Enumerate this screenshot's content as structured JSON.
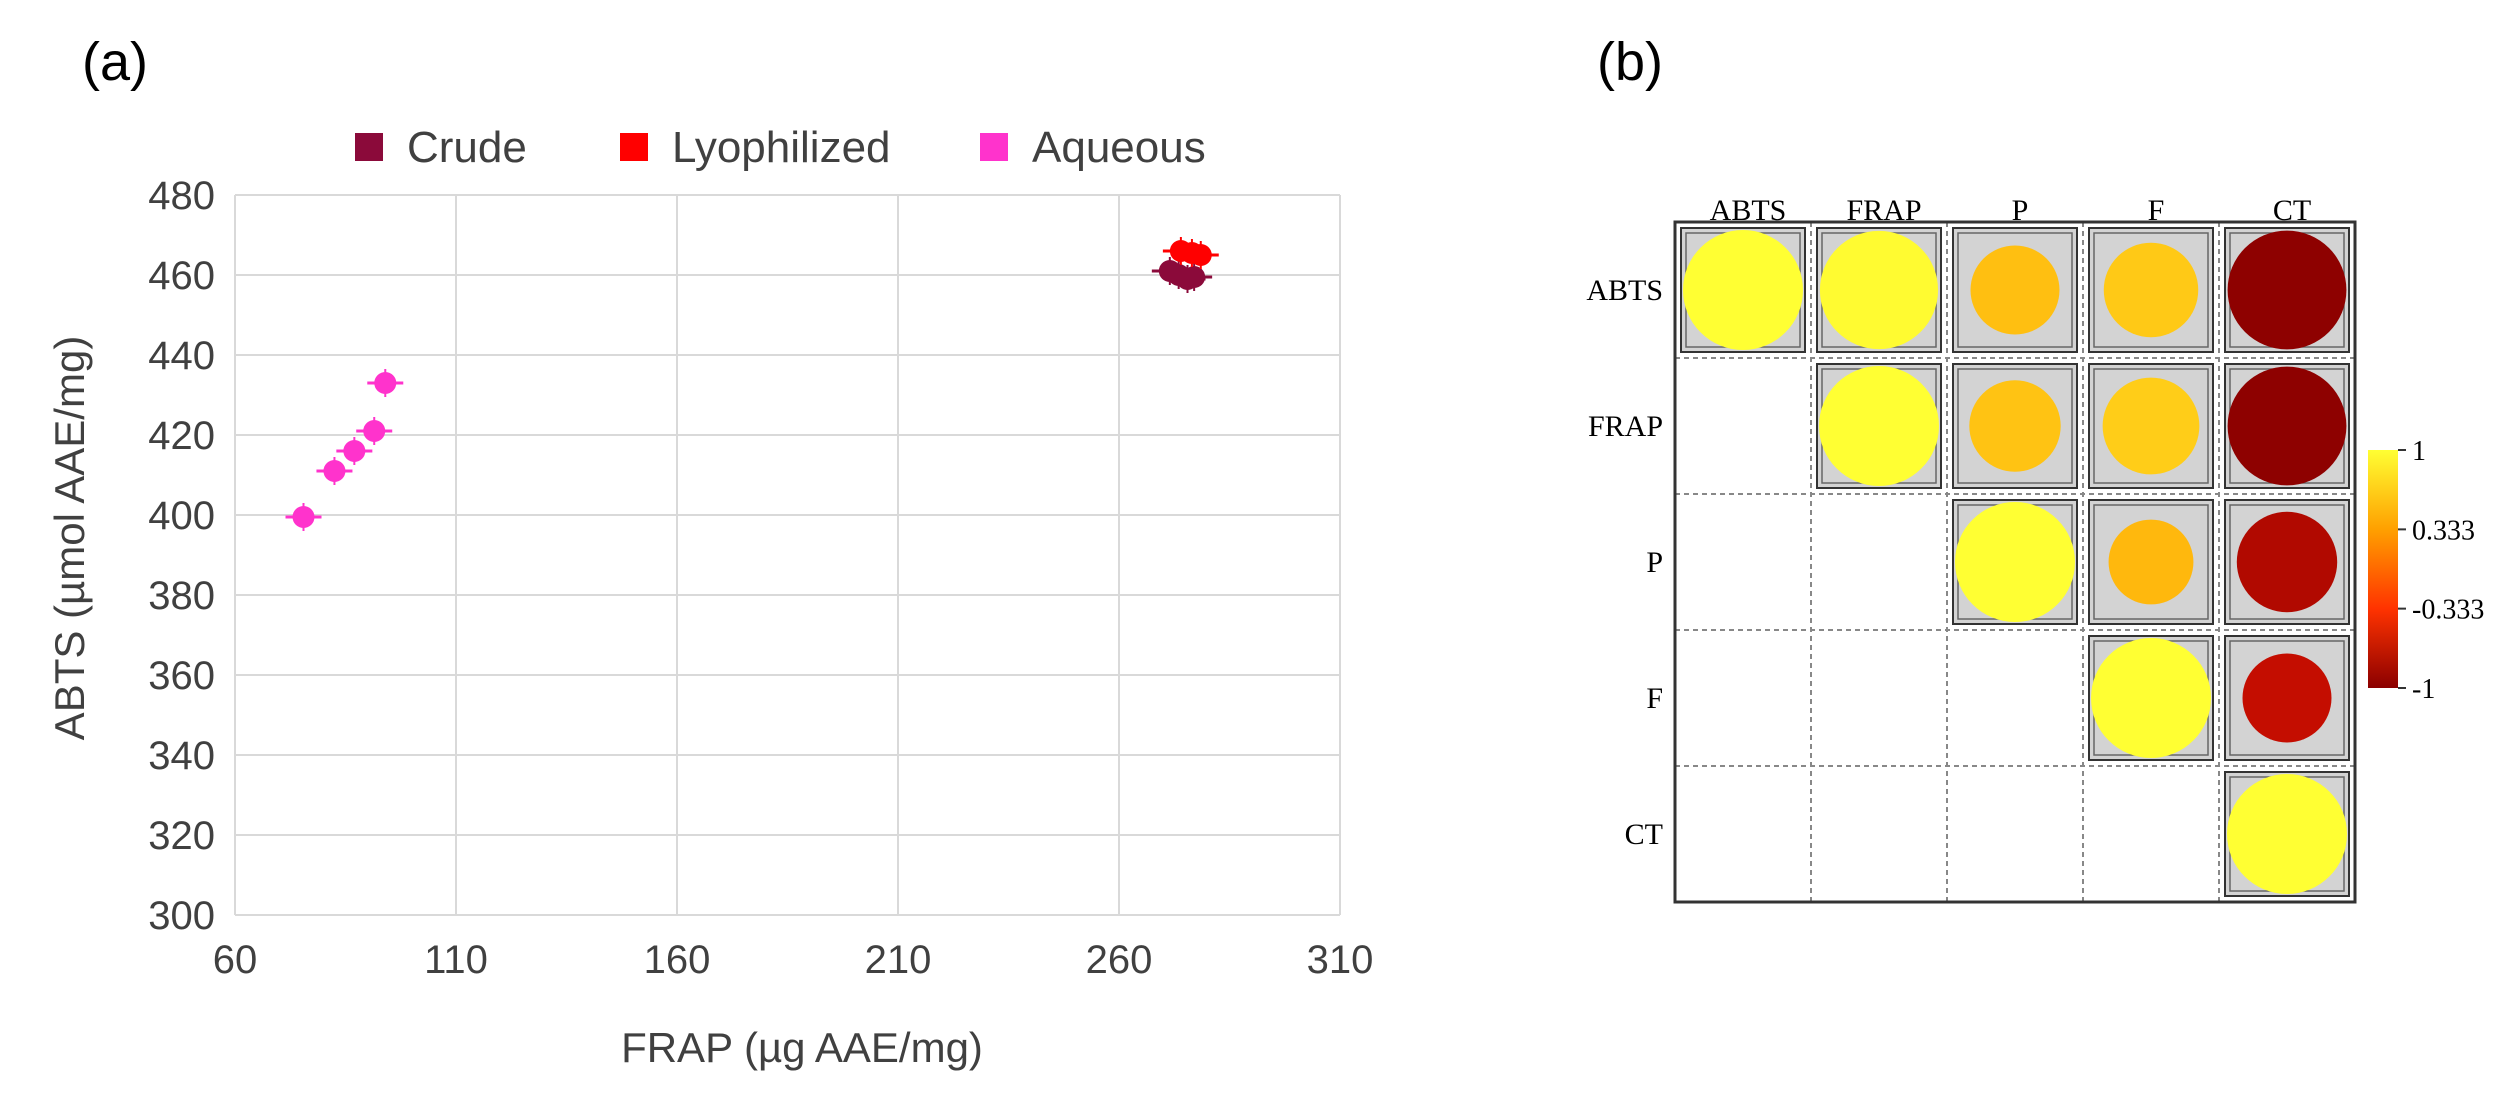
{
  "panel_labels": {
    "a": "(a)",
    "b": "(b)"
  },
  "chart_data": [
    {
      "type": "scatter",
      "xlabel": "FRAP (µg AAE/mg)",
      "ylabel": "ABTS (µmol AAE/mg)",
      "xlim": [
        60,
        310
      ],
      "ylim": [
        300,
        480
      ],
      "xticks": [
        "60",
        "110",
        "160",
        "210",
        "260",
        "310"
      ],
      "yticks": [
        "300",
        "320",
        "340",
        "360",
        "380",
        "400",
        "420",
        "440",
        "460",
        "480"
      ],
      "grid": true,
      "legend_placement": "top",
      "series": [
        {
          "name": "Crude",
          "color": "#8B0A3A",
          "points": [
            [
              271.5,
              461
            ],
            [
              273.5,
              460
            ],
            [
              275.5,
              459
            ],
            [
              277,
              459.5
            ]
          ]
        },
        {
          "name": "Lyophilized",
          "color": "#FF0000",
          "points": [
            [
              274,
              466
            ],
            [
              276.5,
              465.5
            ],
            [
              278.5,
              465
            ]
          ]
        },
        {
          "name": "Aqueous",
          "color": "#FF33CC",
          "points": [
            [
              75.5,
              399.5
            ],
            [
              82.5,
              411
            ],
            [
              87,
              416
            ],
            [
              91.5,
              421
            ],
            [
              94,
              433
            ]
          ]
        }
      ]
    },
    {
      "type": "heatmap",
      "variables": [
        "ABTS",
        "FRAP",
        "P",
        "F",
        "CT"
      ],
      "value_range": [
        -1,
        1
      ],
      "colorbar_ticks": [
        "1",
        "0.333",
        "-0.333",
        "-1"
      ],
      "colorscale": [
        "#8B0000",
        "#FF3300",
        "#FFA000",
        "#FFFF33"
      ],
      "matrix": [
        [
          1.0,
          0.97,
          0.55,
          0.62,
          -0.98
        ],
        [
          null,
          1.0,
          0.58,
          0.65,
          -0.98
        ],
        [
          null,
          null,
          1.0,
          0.5,
          -0.7
        ],
        [
          null,
          null,
          null,
          1.0,
          -0.55
        ],
        [
          null,
          null,
          null,
          null,
          1.0
        ]
      ]
    }
  ]
}
